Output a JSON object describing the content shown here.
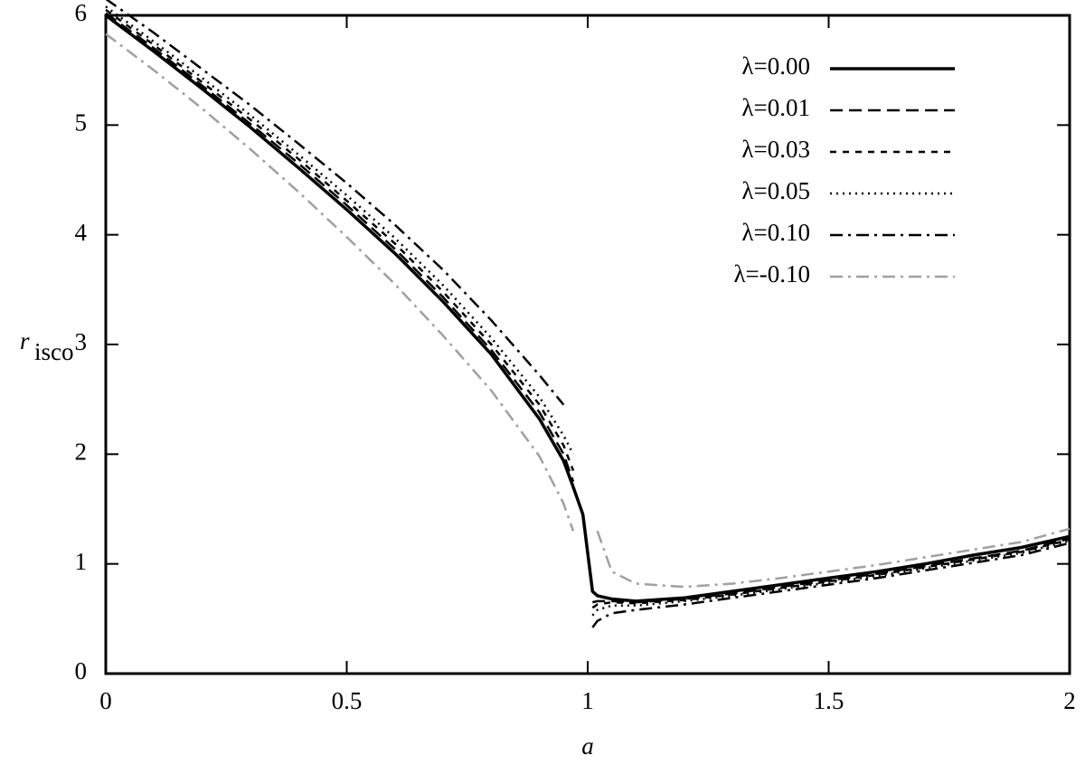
{
  "chart_data": {
    "type": "line",
    "xlabel": "a",
    "ylabel": "r",
    "ylabel_sub": "isco",
    "xlim": [
      0,
      2
    ],
    "ylim": [
      0,
      6
    ],
    "xticks": [
      0,
      0.5,
      1,
      1.5,
      2
    ],
    "yticks": [
      0,
      1,
      2,
      3,
      4,
      5,
      6
    ],
    "legend": "top-right",
    "x": [
      0,
      0.1,
      0.2,
      0.3,
      0.4,
      0.5,
      0.6,
      0.7,
      0.8,
      0.9,
      0.95,
      0.97,
      0.99,
      1.01,
      1.02,
      1.05,
      1.1,
      1.2,
      1.3,
      1.4,
      1.5,
      1.6,
      1.7,
      1.8,
      1.9,
      2.0
    ],
    "series": [
      {
        "name": "λ=0.00",
        "color": "#000000",
        "style": "solid",
        "values": [
          6,
          5.67,
          5.33,
          4.98,
          4.61,
          4.23,
          3.83,
          3.39,
          2.91,
          2.32,
          1.94,
          1.7,
          1.45,
          0.75,
          0.71,
          0.68,
          0.66,
          0.69,
          0.75,
          0.81,
          0.87,
          0.93,
          1.0,
          1.08,
          1.15,
          1.25
        ]
      },
      {
        "name": "λ=0.01",
        "color": "#000000",
        "style": "dashed",
        "values": [
          6.02,
          5.7,
          5.36,
          5.01,
          4.65,
          4.27,
          3.87,
          3.43,
          2.95,
          2.38,
          2.0,
          1.75,
          null,
          0.65,
          0.66,
          0.66,
          0.65,
          0.68,
          0.73,
          0.79,
          0.85,
          0.91,
          0.98,
          1.05,
          1.12,
          1.23
        ]
      },
      {
        "name": "λ=0.03",
        "color": "#000000",
        "style": "short-dashed",
        "values": [
          6.05,
          5.73,
          5.39,
          5.05,
          4.69,
          4.31,
          3.92,
          3.48,
          3.0,
          2.45,
          2.08,
          1.85,
          null,
          0.6,
          0.63,
          0.65,
          0.64,
          0.67,
          0.72,
          0.78,
          0.84,
          0.9,
          0.97,
          1.04,
          1.11,
          1.22
        ]
      },
      {
        "name": "λ=0.05",
        "color": "#000000",
        "style": "dotted",
        "values": [
          6.08,
          5.76,
          5.43,
          5.09,
          4.73,
          4.36,
          3.97,
          3.54,
          3.06,
          2.52,
          2.17,
          2.0,
          null,
          0.53,
          0.58,
          0.62,
          0.62,
          0.66,
          0.71,
          0.77,
          0.83,
          0.89,
          0.96,
          1.03,
          1.1,
          1.21
        ]
      },
      {
        "name": "λ=0.10",
        "color": "#000000",
        "style": "dash-dot",
        "values": [
          6.15,
          5.84,
          5.51,
          5.18,
          4.83,
          4.47,
          4.09,
          3.68,
          3.22,
          2.72,
          2.45,
          null,
          null,
          0.42,
          0.48,
          0.55,
          0.58,
          0.63,
          0.69,
          0.75,
          0.81,
          0.87,
          0.94,
          1.01,
          1.08,
          1.19
        ]
      },
      {
        "name": "λ=-0.10",
        "color": "#a0a0a0",
        "style": "dash-dot",
        "values": [
          5.83,
          5.5,
          5.15,
          4.78,
          4.39,
          3.98,
          3.55,
          3.08,
          2.58,
          1.98,
          1.55,
          1.3,
          null,
          null,
          1.3,
          0.93,
          0.82,
          0.79,
          0.82,
          0.87,
          0.93,
          0.99,
          1.06,
          1.13,
          1.2,
          1.32
        ]
      }
    ]
  }
}
